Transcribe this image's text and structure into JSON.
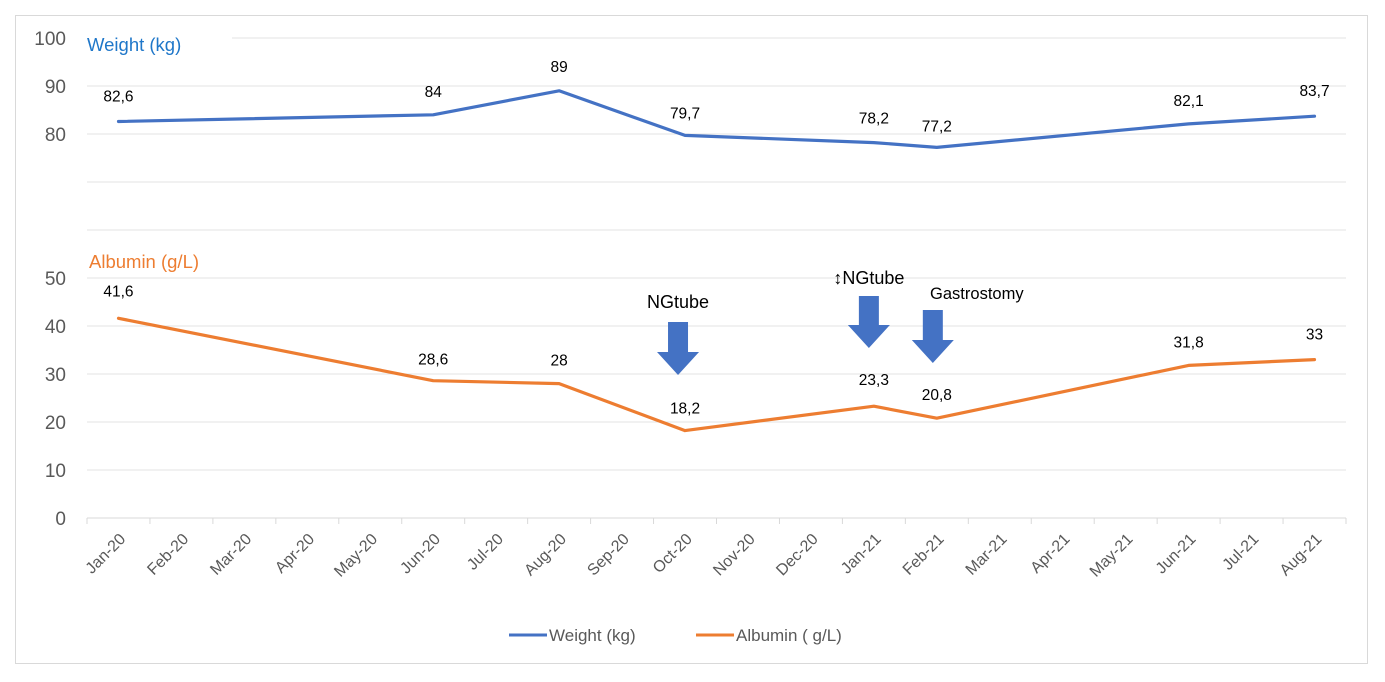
{
  "chart_data": {
    "type": "line",
    "title": "",
    "xlabel": "",
    "ylabel": "",
    "ylim": [
      0,
      100
    ],
    "y_ticks": [
      "0",
      "10",
      "20",
      "30",
      "40",
      "50",
      "80",
      "90",
      "100"
    ],
    "y_tick_values": [
      0,
      10,
      20,
      30,
      40,
      50,
      80,
      90,
      100
    ],
    "y_gridlines": [
      0,
      10,
      20,
      30,
      40,
      50,
      60,
      70,
      80,
      90,
      100
    ],
    "grid": true,
    "categories": [
      "Jan-20",
      "Feb-20",
      "Mar-20",
      "Apr-20",
      "May-20",
      "Jun-20",
      "Jul-20",
      "Aug-20",
      "Sep-20",
      "Oct-20",
      "Nov-20",
      "Dec-20",
      "Jan-21",
      "Feb-21",
      "Mar-21",
      "Apr-21",
      "May-21",
      "Jun-21",
      "Jul-21",
      "Aug-21"
    ],
    "section_labels": {
      "weight": "Weight (kg)",
      "albumin": "Albumin (g/L)"
    },
    "series": [
      {
        "name": "Weight (kg)",
        "color": "#4472c4",
        "points": [
          {
            "x": "Jan-20",
            "y": 82.6,
            "label": "82,6"
          },
          {
            "x": "Jun-20",
            "y": 84,
            "label": "84"
          },
          {
            "x": "Aug-20",
            "y": 89,
            "label": "89"
          },
          {
            "x": "Oct-20",
            "y": 79.7,
            "label": "79,7"
          },
          {
            "x": "Jan-21",
            "y": 78.2,
            "label": "78,2"
          },
          {
            "x": "Feb-21",
            "y": 77.2,
            "label": "77,2"
          },
          {
            "x": "Jun-21",
            "y": 82.1,
            "label": "82,1"
          },
          {
            "x": "Aug-21",
            "y": 83.7,
            "label": "83,7"
          }
        ]
      },
      {
        "name": "Albumin ( g/L)",
        "color": "#ed7d31",
        "points": [
          {
            "x": "Jan-20",
            "y": 41.6,
            "label": "41,6"
          },
          {
            "x": "Jun-20",
            "y": 28.6,
            "label": "28,6"
          },
          {
            "x": "Aug-20",
            "y": 28,
            "label": "28"
          },
          {
            "x": "Oct-20",
            "y": 18.2,
            "label": "18,2"
          },
          {
            "x": "Jan-21",
            "y": 23.3,
            "label": "23,3"
          },
          {
            "x": "Feb-21",
            "y": 20.8,
            "label": "20,8"
          },
          {
            "x": "Jun-21",
            "y": 31.8,
            "label": "31,8"
          },
          {
            "x": "Aug-21",
            "y": 33,
            "label": "33"
          }
        ]
      }
    ],
    "annotations": [
      {
        "x": "Oct-20",
        "text": "NGtube",
        "marker": "down-arrow"
      },
      {
        "x": "Jan-21",
        "text": "↕NGtube",
        "marker": "down-arrow"
      },
      {
        "x": "Feb-21",
        "text": "Gastrostomy",
        "marker": "down-arrow"
      }
    ],
    "arrow_color": "#4472c4",
    "legend": [
      "Weight (kg)",
      "Albumin ( g/L)"
    ],
    "legend_position": "bottom"
  }
}
